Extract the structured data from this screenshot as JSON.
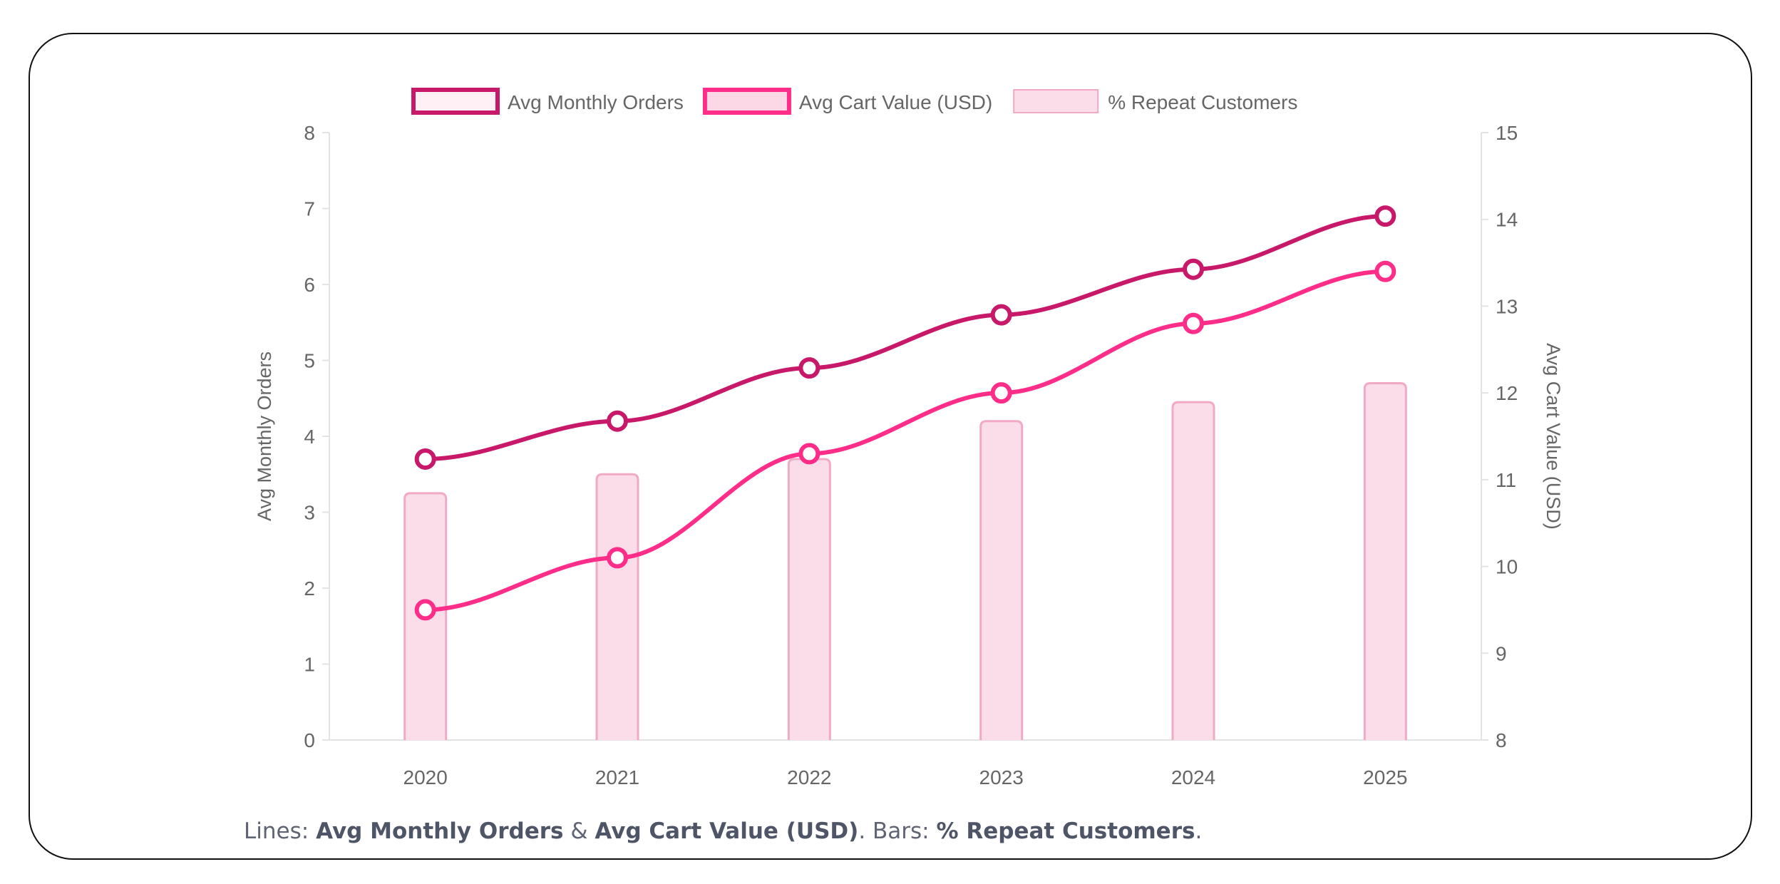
{
  "chart_data": {
    "type": "bar+line",
    "categories": [
      "2020",
      "2021",
      "2022",
      "2023",
      "2024",
      "2025"
    ],
    "legend_position": "top",
    "grid": false,
    "y_left": {
      "label": "Avg Monthly Orders",
      "range": [
        0,
        8
      ],
      "ticks": [
        "0",
        "1",
        "2",
        "3",
        "4",
        "5",
        "6",
        "7",
        "8"
      ]
    },
    "y_right": {
      "label": "Avg Cart Value (USD)",
      "range": [
        8,
        15
      ],
      "ticks": [
        "8",
        "9",
        "10",
        "11",
        "12",
        "13",
        "14",
        "15"
      ]
    },
    "series": [
      {
        "name": "Avg Monthly Orders",
        "type": "line",
        "axis": "left",
        "values": [
          3.7,
          4.2,
          4.9,
          5.6,
          6.2,
          6.9
        ],
        "color": "#c8186a"
      },
      {
        "name": "Avg Cart Value (USD)",
        "type": "line",
        "axis": "right",
        "values": [
          9.5,
          10.1,
          11.3,
          12.0,
          12.8,
          13.4
        ],
        "color": "#ff2d8a"
      },
      {
        "name": "% Repeat Customers",
        "type": "bar",
        "axis": "left",
        "values": [
          3.25,
          3.5,
          3.7,
          4.2,
          4.45,
          4.7
        ],
        "color": "#fadde8",
        "border": "#f2a9c6"
      }
    ]
  },
  "caption": {
    "p1": "Lines: ",
    "b1": "Avg Monthly Orders",
    "p2": " & ",
    "b2": "Avg Cart Value (USD)",
    "p3": ". Bars: ",
    "b3": "% Repeat Customers",
    "p4": "."
  }
}
